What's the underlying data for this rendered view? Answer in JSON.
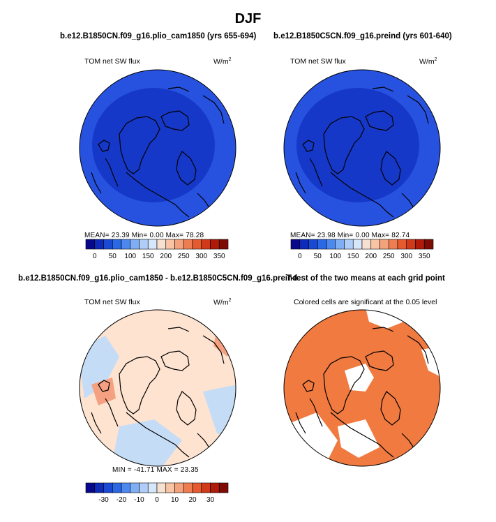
{
  "page_title": "DJF",
  "panels": [
    {
      "run_title": "b.e12.B1850CN.f09_g16.plio_cam1850 (yrs 655-694)",
      "variable": "TOM net SW flux",
      "units": "W/m",
      "units_exp": "2",
      "stats": "MEAN=  23.39   Min=    0.00   Max=  78.28",
      "colorbar": {
        "colors": [
          "#08088c",
          "#0d2ab8",
          "#1a4ad4",
          "#2a68e6",
          "#4c88ee",
          "#80aef4",
          "#b0cdf8",
          "#d6e6fb",
          "#f8e0d0",
          "#f8c4a4",
          "#f4a27c",
          "#ee7e52",
          "#e65a30",
          "#d03a18",
          "#b01a08",
          "#7e0c04"
        ],
        "ticks": [
          "0",
          "50",
          "100",
          "150",
          "200",
          "250",
          "300",
          "350"
        ]
      },
      "map": {
        "ocean_color": "#2752e0",
        "arctic_color": "#1638c8"
      }
    },
    {
      "run_title": "b.e12.B1850C5CN.f09_g16.preind (yrs 601-640)",
      "variable": "TOM net SW flux",
      "units": "W/m",
      "units_exp": "2",
      "stats": "MEAN=  23.98   Min=    0.00   Max=  82.74",
      "colorbar": {
        "colors": [
          "#08088c",
          "#0d2ab8",
          "#1a4ad4",
          "#2a68e6",
          "#4c88ee",
          "#80aef4",
          "#b0cdf8",
          "#d6e6fb",
          "#f8e0d0",
          "#f8c4a4",
          "#f4a27c",
          "#ee7e52",
          "#e65a30",
          "#d03a18",
          "#b01a08",
          "#7e0c04"
        ],
        "ticks": [
          "0",
          "50",
          "100",
          "150",
          "200",
          "250",
          "300",
          "350"
        ]
      },
      "map": {
        "ocean_color": "#2752e0",
        "arctic_color": "#1638c8"
      }
    },
    {
      "run_title": "b.e12.B1850CN.f09_g16.plio_cam1850 - b.e12.B1850C5CN.f09_g16.preind",
      "variable": "TOM net SW flux",
      "units": "W/m",
      "units_exp": "2",
      "stats": "MIN = -41.71  MAX =   23.35",
      "colorbar": {
        "colors": [
          "#08088c",
          "#0d2ab8",
          "#1a4ad4",
          "#2a68e6",
          "#4c88ee",
          "#80aef4",
          "#b0cdf8",
          "#d6e6fb",
          "#f8e0d0",
          "#f8c4a4",
          "#f4a27c",
          "#ee7e52",
          "#e65a30",
          "#d03a18",
          "#b01a08",
          "#7e0c04"
        ],
        "ticks": [
          "-30",
          "-20",
          "-10",
          "0",
          "10",
          "20",
          "30"
        ]
      },
      "map": {
        "base_color": "#fde3d0",
        "blue_patch": "#c5dcf6",
        "red_patch": "#f5a080"
      }
    },
    {
      "run_title": "T-test of the two means at each grid point",
      "note": "Colored cells are significant at the 0.05 level",
      "map": {
        "fill_color": "#f07a40"
      }
    }
  ]
}
